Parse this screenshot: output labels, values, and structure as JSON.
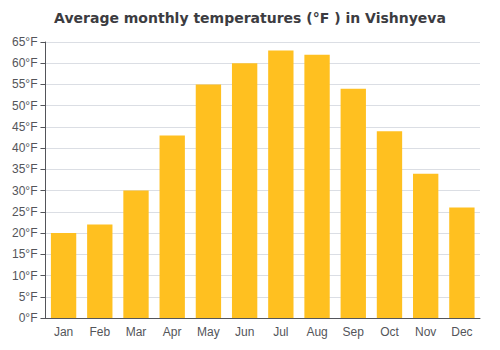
{
  "chart_data": {
    "type": "bar",
    "title": "Average monthly temperatures (°F ) in Vishnyeva",
    "categories": [
      "Jan",
      "Feb",
      "Mar",
      "Apr",
      "May",
      "Jun",
      "Jul",
      "Aug",
      "Sep",
      "Oct",
      "Nov",
      "Dec"
    ],
    "values": [
      20,
      22,
      30,
      43,
      55,
      60,
      63,
      62,
      54,
      44,
      34,
      26
    ],
    "color": "#FFC020",
    "ylim": [
      0,
      65
    ],
    "yticks": [
      {
        "value": 0,
        "label": "0°F"
      },
      {
        "value": 5,
        "label": "5°F"
      },
      {
        "value": 10,
        "label": "10°F"
      },
      {
        "value": 15,
        "label": "15°F"
      },
      {
        "value": 20,
        "label": "20°F"
      },
      {
        "value": 25,
        "label": "25°F"
      },
      {
        "value": 30,
        "label": "30°F"
      },
      {
        "value": 35,
        "label": "35°F"
      },
      {
        "value": 40,
        "label": "40°F"
      },
      {
        "value": 45,
        "label": "45°F"
      },
      {
        "value": 50,
        "label": "50°F"
      },
      {
        "value": 55,
        "label": "55°F"
      },
      {
        "value": 60,
        "label": "60°F"
      },
      {
        "value": 65,
        "label": "65°F"
      }
    ],
    "grid": true
  }
}
